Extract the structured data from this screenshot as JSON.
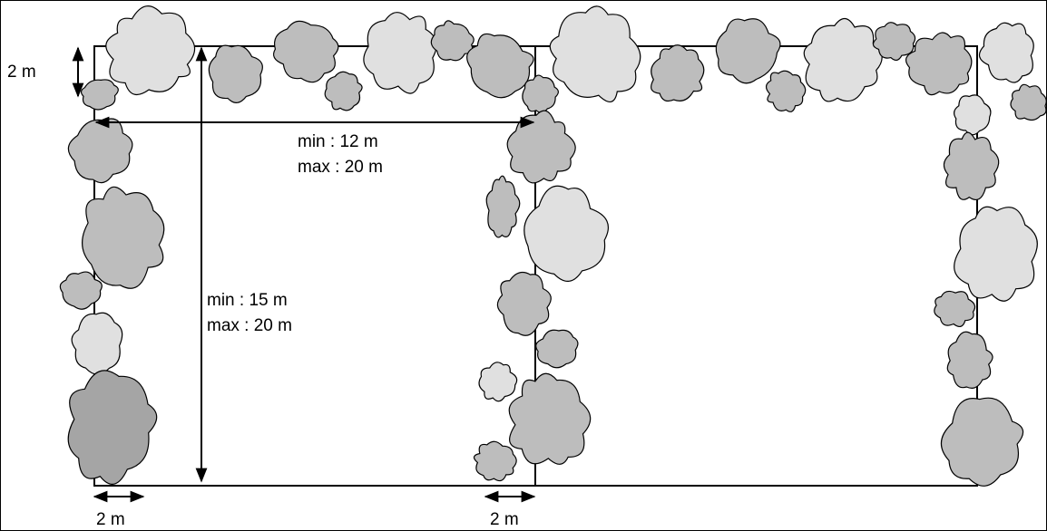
{
  "labels": {
    "hedge_depth_top": "2 m",
    "width_min": "min : 12 m",
    "width_max": "max : 20 m",
    "length_min": "min : 15 m",
    "length_max": "max : 20 m",
    "hedge_depth_bottom_left": "2 m",
    "hedge_depth_bottom_middle": "2 m"
  },
  "colors": {
    "shrub_light": "#e0e0e0",
    "shrub_mid": "#bdbdbd",
    "shrub_dark": "#a5a5a5",
    "line": "#000000"
  }
}
